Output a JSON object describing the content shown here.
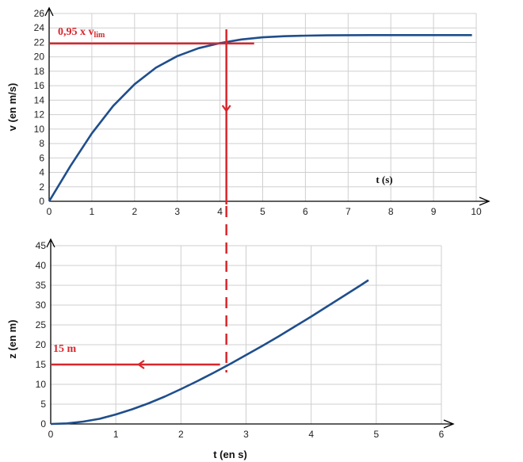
{
  "chart_data": [
    {
      "type": "line",
      "ylabel": "v (en m/s)",
      "inner_xlabel": "t (s)",
      "xlim": [
        0,
        10
      ],
      "ylim": [
        0,
        26
      ],
      "x_ticks": [
        "0",
        "1",
        "2",
        "3",
        "4",
        "5",
        "6",
        "7",
        "8",
        "9",
        "10"
      ],
      "y_ticks": [
        "0",
        "2",
        "4",
        "6",
        "8",
        "10",
        "12",
        "14",
        "16",
        "18",
        "20",
        "22",
        "24",
        "26"
      ],
      "grid": true,
      "series": [
        {
          "color": "#1f4e8c",
          "x": [
            0,
            0.5,
            1,
            1.5,
            2,
            2.5,
            3,
            3.5,
            4,
            4.5,
            5,
            5.5,
            6,
            6.5,
            7,
            7.5,
            8,
            8.5,
            9,
            9.5,
            9.9
          ],
          "y": [
            0,
            4.9,
            9.4,
            13.2,
            16.2,
            18.5,
            20.1,
            21.2,
            21.9,
            22.4,
            22.7,
            22.85,
            22.93,
            22.97,
            22.99,
            23.0,
            23.0,
            23.0,
            23.0,
            23.0,
            23.0
          ]
        }
      ],
      "annotation": {
        "text": "0,95 x v",
        "subscript": "lim",
        "y": 21.85,
        "x": 4.15,
        "color": "#d9262c"
      }
    },
    {
      "type": "line",
      "ylabel": "z (en m)",
      "xlabel": "t (en s)",
      "xlim": [
        0,
        6
      ],
      "ylim": [
        0,
        45
      ],
      "x_ticks": [
        "0",
        "1",
        "2",
        "3",
        "4",
        "5",
        "6"
      ],
      "y_ticks": [
        "0",
        "5",
        "10",
        "15",
        "20",
        "25",
        "30",
        "35",
        "40",
        "45"
      ],
      "grid": true,
      "series": [
        {
          "color": "#1f4e8c",
          "x": [
            0,
            0.25,
            0.5,
            0.75,
            1,
            1.25,
            1.5,
            1.75,
            2,
            2.25,
            2.5,
            2.75,
            3,
            3.25,
            3.5,
            3.75,
            4,
            4.25,
            4.5,
            4.75,
            4.88
          ],
          "y": [
            0,
            0.15,
            0.6,
            1.3,
            2.4,
            3.7,
            5.2,
            6.9,
            8.8,
            10.8,
            12.9,
            15.1,
            17.4,
            19.7,
            22.1,
            24.6,
            27.1,
            29.7,
            32.3,
            34.9,
            36.3
          ]
        }
      ],
      "annotation": {
        "text": "15 m",
        "y": 15,
        "x": 2.7,
        "color": "#d9262c"
      }
    }
  ]
}
